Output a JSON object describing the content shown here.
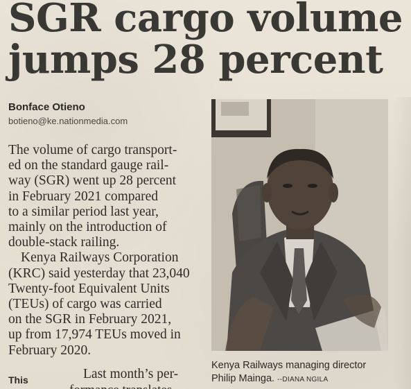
{
  "headline": {
    "line1": "SGR cargo volume",
    "line2": "jumps 28 percent"
  },
  "byline": {
    "author": "Bonface Otieno",
    "email": "botieno@ke.nationmedia.com"
  },
  "article": {
    "lines": [
      "The volume of cargo transport-",
      "ed on the standard gauge rail-",
      "way (SGR) went up 28 percent",
      "in February 2021 compared",
      "to a similar period last year,",
      "mainly on the introduction of",
      "double-stack railing.",
      "Kenya Railways Corporation",
      "(KRC) said yesterday that 23,040",
      "Twenty-foot Equivalent Units",
      "(TEUs) of cargo was carried",
      "on the SGR in February 2021,",
      "up from 17,974 TEUs moved in",
      "February 2020."
    ],
    "last_month": "Last month’s per-",
    "cut_line": "formance translates",
    "subhead": "This"
  },
  "caption": {
    "line1": "Kenya Railways managing director",
    "line2": "Philip Mainga.",
    "credit": "--DIANA NGILA"
  },
  "colors": {
    "paper": "#e8e2d6",
    "ink": "#2e2b28"
  }
}
